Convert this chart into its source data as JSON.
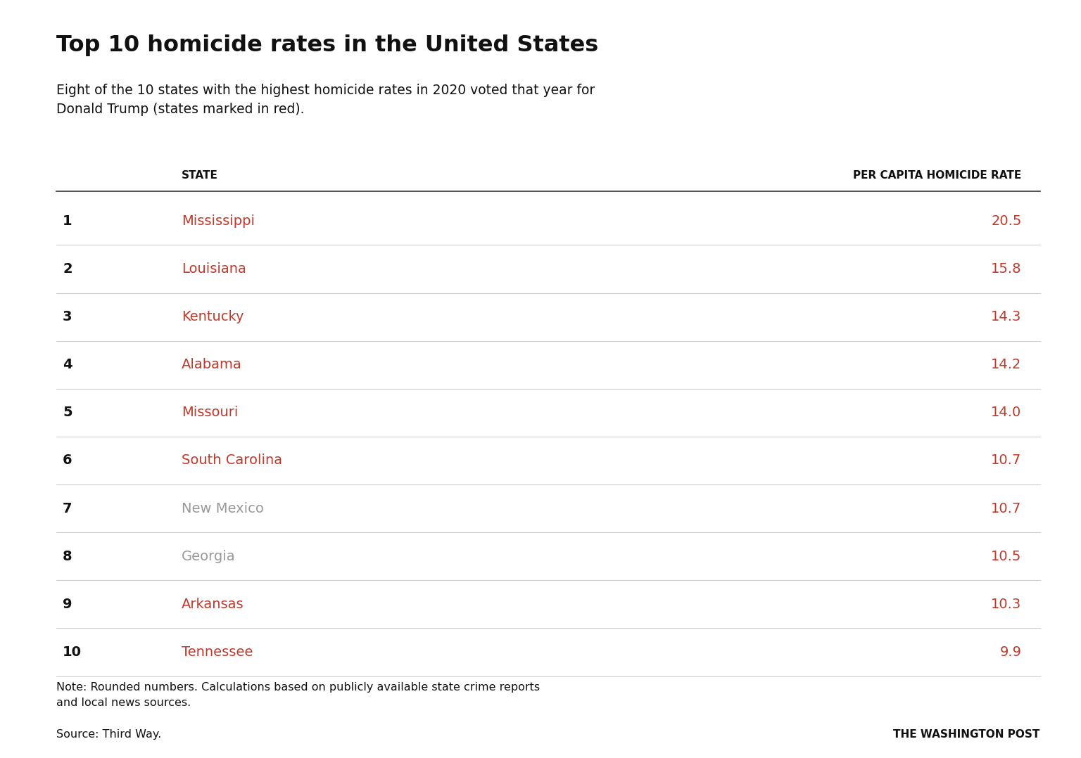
{
  "title": "Top 10 homicide rates in the United States",
  "subtitle": "Eight of the 10 states with the highest homicide rates in 2020 voted that year for\nDonald Trump (states marked in red).",
  "col_header_state": "STATE",
  "col_header_rate": "PER CAPITA HOMICIDE RATE",
  "note": "Note: Rounded numbers. Calculations based on publicly available state crime reports\nand local news sources.",
  "source": "Source: Third Way.",
  "branding": "THE WASHINGTON POST",
  "rows": [
    {
      "rank": 1,
      "state": "Mississippi",
      "rate": "20.5",
      "trump": true
    },
    {
      "rank": 2,
      "state": "Louisiana",
      "rate": "15.8",
      "trump": true
    },
    {
      "rank": 3,
      "state": "Kentucky",
      "rate": "14.3",
      "trump": true
    },
    {
      "rank": 4,
      "state": "Alabama",
      "rate": "14.2",
      "trump": true
    },
    {
      "rank": 5,
      "state": "Missouri",
      "rate": "14.0",
      "trump": true
    },
    {
      "rank": 6,
      "state": "South Carolina",
      "rate": "10.7",
      "trump": true
    },
    {
      "rank": 7,
      "state": "New Mexico",
      "rate": "10.7",
      "trump": false
    },
    {
      "rank": 8,
      "state": "Georgia",
      "rate": "10.5",
      "trump": false
    },
    {
      "rank": 9,
      "state": "Arkansas",
      "rate": "10.3",
      "trump": true
    },
    {
      "rank": 10,
      "state": "Tennessee",
      "rate": "9.9",
      "trump": true
    }
  ],
  "red_color": "#c0392b",
  "gray_color": "#999999",
  "black_color": "#111111",
  "bg_color": "#ffffff",
  "line_color": "#cccccc",
  "header_line_color": "#444444",
  "title_fontsize": 23,
  "subtitle_fontsize": 13.5,
  "header_fontsize": 11,
  "rank_fontsize": 14,
  "state_fontsize": 14,
  "rate_fontsize": 14,
  "note_fontsize": 11.5,
  "source_fontsize": 11.5,
  "branding_fontsize": 11
}
